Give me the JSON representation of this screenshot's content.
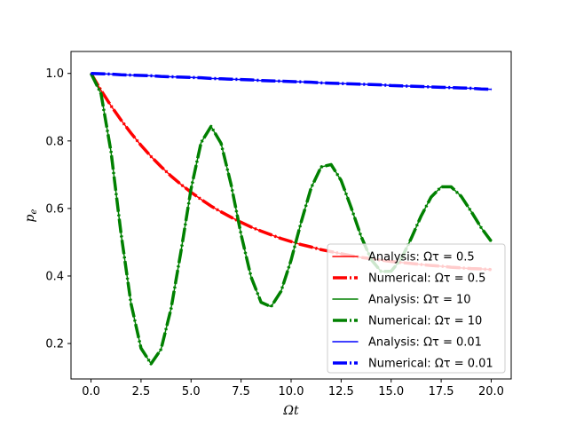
{
  "chart_data": {
    "type": "line",
    "title": "",
    "xlabel": "Ωt",
    "ylabel": "p_e",
    "ylabel_main": "p",
    "ylabel_sub": "e",
    "xlim": [
      -1.0,
      21.0
    ],
    "ylim": [
      0.095,
      1.065
    ],
    "x_ticks": [
      0.0,
      2.5,
      5.0,
      7.5,
      10.0,
      12.5,
      15.0,
      17.5,
      20.0
    ],
    "x_tick_labels": [
      "0.0",
      "2.5",
      "5.0",
      "7.5",
      "10.0",
      "12.5",
      "15.0",
      "17.5",
      "20.0"
    ],
    "y_ticks": [
      0.2,
      0.4,
      0.6,
      0.8,
      1.0
    ],
    "y_tick_labels": [
      "0.2",
      "0.4",
      "0.6",
      "0.8",
      "1.0"
    ],
    "grid": false,
    "legend_position": "lower-right",
    "x": [
      0,
      0.5,
      1,
      1.5,
      2,
      2.5,
      3,
      3.5,
      4,
      4.5,
      5,
      5.5,
      6,
      6.5,
      7,
      7.5,
      8,
      8.5,
      9,
      9.5,
      10,
      10.5,
      11,
      11.5,
      12,
      12.5,
      13,
      13.5,
      14,
      14.5,
      15,
      15.5,
      16,
      16.5,
      17,
      17.5,
      18,
      18.5,
      19,
      19.5,
      20
    ],
    "series": [
      {
        "name": "Analysis: Ωτ = 0.5",
        "color": "#ff0000",
        "style": "solid-thin",
        "values": [
          1.0,
          0.95,
          0.904,
          0.862,
          0.823,
          0.787,
          0.754,
          0.724,
          0.696,
          0.671,
          0.648,
          0.627,
          0.607,
          0.59,
          0.574,
          0.559,
          0.545,
          0.533,
          0.522,
          0.511,
          0.502,
          0.493,
          0.486,
          0.478,
          0.472,
          0.466,
          0.46,
          0.455,
          0.451,
          0.447,
          0.443,
          0.44,
          0.437,
          0.434,
          0.431,
          0.429,
          0.426,
          0.424,
          0.422,
          0.421,
          0.419
        ]
      },
      {
        "name": "Numerical: Ωτ = 0.5",
        "color": "#ff0000",
        "style": "dash-dot-thick",
        "values": [
          1.0,
          0.95,
          0.904,
          0.862,
          0.823,
          0.787,
          0.754,
          0.724,
          0.696,
          0.671,
          0.648,
          0.627,
          0.607,
          0.59,
          0.574,
          0.559,
          0.545,
          0.533,
          0.522,
          0.511,
          0.502,
          0.493,
          0.486,
          0.478,
          0.472,
          0.466,
          0.46,
          0.455,
          0.451,
          0.447,
          0.443,
          0.44,
          0.437,
          0.434,
          0.431,
          0.429,
          0.426,
          0.424,
          0.422,
          0.421,
          0.419
        ]
      },
      {
        "name": "Analysis: Ωτ = 10",
        "color": "#008000",
        "style": "solid-thin",
        "values": [
          1.0,
          0.94,
          0.768,
          0.526,
          0.318,
          0.186,
          0.14,
          0.183,
          0.303,
          0.474,
          0.658,
          0.795,
          0.843,
          0.793,
          0.671,
          0.523,
          0.397,
          0.322,
          0.309,
          0.355,
          0.447,
          0.559,
          0.661,
          0.723,
          0.73,
          0.683,
          0.603,
          0.517,
          0.449,
          0.413,
          0.414,
          0.45,
          0.511,
          0.578,
          0.634,
          0.664,
          0.664,
          0.636,
          0.591,
          0.543,
          0.503
        ]
      },
      {
        "name": "Numerical: Ωτ = 10",
        "color": "#008000",
        "style": "dash-dot-thick",
        "values": [
          1.0,
          0.94,
          0.768,
          0.526,
          0.318,
          0.186,
          0.14,
          0.183,
          0.303,
          0.474,
          0.658,
          0.795,
          0.843,
          0.793,
          0.671,
          0.523,
          0.397,
          0.322,
          0.309,
          0.355,
          0.447,
          0.559,
          0.661,
          0.723,
          0.73,
          0.683,
          0.603,
          0.517,
          0.449,
          0.413,
          0.414,
          0.45,
          0.511,
          0.578,
          0.634,
          0.664,
          0.664,
          0.636,
          0.591,
          0.543,
          0.503
        ]
      },
      {
        "name": "Analysis: Ωτ = 0.01",
        "color": "#0000ff",
        "style": "solid-thin",
        "values": [
          1.0,
          0.999,
          0.998,
          0.996,
          0.995,
          0.994,
          0.993,
          0.991,
          0.99,
          0.989,
          0.988,
          0.987,
          0.985,
          0.984,
          0.983,
          0.982,
          0.981,
          0.979,
          0.978,
          0.977,
          0.976,
          0.975,
          0.974,
          0.972,
          0.971,
          0.97,
          0.969,
          0.968,
          0.967,
          0.966,
          0.964,
          0.963,
          0.962,
          0.961,
          0.96,
          0.959,
          0.958,
          0.957,
          0.956,
          0.954,
          0.953
        ]
      },
      {
        "name": "Numerical: Ωτ = 0.01",
        "color": "#0000ff",
        "style": "dash-dot-thick",
        "values": [
          1.0,
          0.999,
          0.998,
          0.996,
          0.995,
          0.994,
          0.993,
          0.991,
          0.99,
          0.989,
          0.988,
          0.987,
          0.985,
          0.984,
          0.983,
          0.982,
          0.981,
          0.979,
          0.978,
          0.977,
          0.976,
          0.975,
          0.974,
          0.972,
          0.971,
          0.97,
          0.969,
          0.968,
          0.967,
          0.966,
          0.964,
          0.963,
          0.962,
          0.961,
          0.96,
          0.959,
          0.958,
          0.957,
          0.956,
          0.954,
          0.953
        ]
      }
    ]
  }
}
